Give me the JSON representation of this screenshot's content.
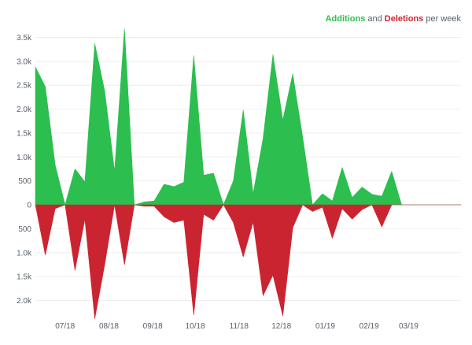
{
  "legend": {
    "additions_label": "Additions",
    "and_label": " and ",
    "deletions_label": "Deletions",
    "suffix_label": " per week"
  },
  "chart_data": {
    "type": "area",
    "title": "Additions and Deletions per week",
    "xlabel": "",
    "ylabel": "",
    "colors": {
      "additions": "#2cbe4e",
      "deletions": "#cb2431",
      "grid": "#eeeeee",
      "text": "#586069"
    },
    "ylim": [
      -2400,
      3700
    ],
    "yticks": [
      {
        "value": 3500,
        "label": "3.5k"
      },
      {
        "value": 3000,
        "label": "3.0k"
      },
      {
        "value": 2500,
        "label": "2.5k"
      },
      {
        "value": 2000,
        "label": "2.0k"
      },
      {
        "value": 1500,
        "label": "1.5k"
      },
      {
        "value": 1000,
        "label": "1.0k"
      },
      {
        "value": 500,
        "label": "500"
      },
      {
        "value": 0,
        "label": "0"
      },
      {
        "value": -500,
        "label": "500"
      },
      {
        "value": -1000,
        "label": "1.0k"
      },
      {
        "value": -1500,
        "label": "1.5k"
      },
      {
        "value": -2000,
        "label": "2.0k"
      }
    ],
    "xlim": [
      "2018-06-10",
      "2019-04-07"
    ],
    "xticks": [
      {
        "date": "2018-07-01",
        "label": "07/18"
      },
      {
        "date": "2018-08-01",
        "label": "08/18"
      },
      {
        "date": "2018-09-01",
        "label": "09/18"
      },
      {
        "date": "2018-10-01",
        "label": "10/18"
      },
      {
        "date": "2018-11-01",
        "label": "11/18"
      },
      {
        "date": "2018-12-01",
        "label": "12/18"
      },
      {
        "date": "2019-01-01",
        "label": "01/19"
      },
      {
        "date": "2019-02-01",
        "label": "02/19"
      },
      {
        "date": "2019-03-01",
        "label": "03/19"
      }
    ],
    "x": [
      "2018-06-10",
      "2018-06-17",
      "2018-06-24",
      "2018-07-01",
      "2018-07-08",
      "2018-07-15",
      "2018-07-22",
      "2018-07-29",
      "2018-08-05",
      "2018-08-12",
      "2018-08-19",
      "2018-08-26",
      "2018-09-02",
      "2018-09-09",
      "2018-09-16",
      "2018-09-23",
      "2018-09-30",
      "2018-10-07",
      "2018-10-14",
      "2018-10-21",
      "2018-10-28",
      "2018-11-04",
      "2018-11-11",
      "2018-11-18",
      "2018-11-25",
      "2018-12-02",
      "2018-12-09",
      "2018-12-16",
      "2018-12-23",
      "2018-12-30",
      "2019-01-06",
      "2019-01-13",
      "2019-01-20",
      "2019-01-27",
      "2019-02-03",
      "2019-02-10",
      "2019-02-17",
      "2019-02-24",
      "2019-03-03",
      "2019-03-10",
      "2019-03-17",
      "2019-03-24",
      "2019-03-31",
      "2019-04-07"
    ],
    "series": [
      {
        "name": "Additions",
        "values": [
          2880,
          2470,
          830,
          0,
          750,
          480,
          3370,
          2380,
          700,
          3680,
          0,
          60,
          80,
          430,
          380,
          470,
          3120,
          620,
          660,
          0,
          500,
          1980,
          230,
          1380,
          3140,
          1770,
          2740,
          1420,
          0,
          230,
          80,
          780,
          150,
          370,
          220,
          180,
          700,
          0,
          0,
          0,
          0,
          0,
          0,
          0
        ]
      },
      {
        "name": "Deletions",
        "values": [
          0,
          1050,
          80,
          0,
          1370,
          300,
          2380,
          1250,
          0,
          1250,
          0,
          30,
          30,
          250,
          370,
          320,
          2300,
          200,
          320,
          0,
          370,
          1090,
          360,
          1900,
          1470,
          2320,
          480,
          0,
          140,
          50,
          700,
          80,
          300,
          100,
          0,
          460,
          0,
          0,
          0,
          0,
          0,
          0,
          0,
          0
        ]
      }
    ]
  }
}
